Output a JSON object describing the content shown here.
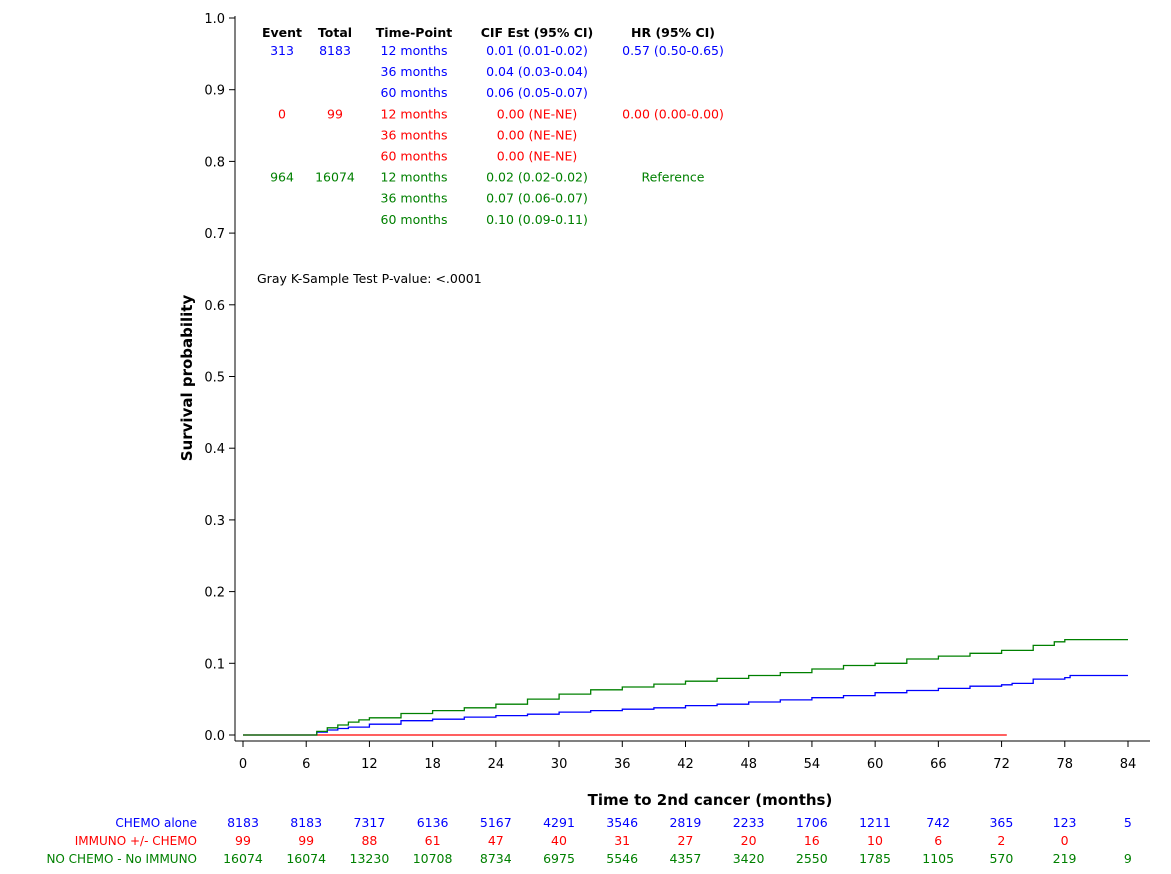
{
  "colors": {
    "CHEMO alone": "#0000ff",
    "IMMUNO +/- CHEMO": "#ff0000",
    "NO CHEMO - No IMMUNO": "#008000",
    "axis": "#000000",
    "text": "#000000"
  },
  "chart_data": {
    "type": "line",
    "title": "",
    "xlabel": "Time to 2nd cancer (months)",
    "ylabel": "Survival probability",
    "xlim": [
      0,
      84
    ],
    "ylim": [
      0,
      1.0
    ],
    "x_ticks": [
      0,
      6,
      12,
      18,
      24,
      30,
      36,
      42,
      48,
      54,
      60,
      66,
      72,
      78,
      84
    ],
    "y_ticks": [
      "0.0",
      "0.1",
      "0.2",
      "0.3",
      "0.4",
      "0.5",
      "0.6",
      "0.7",
      "0.8",
      "0.9",
      "1.0"
    ],
    "grid": false,
    "series": [
      {
        "name": "CHEMO alone",
        "points": [
          [
            0,
            0
          ],
          [
            6,
            0
          ],
          [
            7,
            0.004
          ],
          [
            8,
            0.007
          ],
          [
            9,
            0.009
          ],
          [
            10,
            0.011
          ],
          [
            12,
            0.015
          ],
          [
            15,
            0.02
          ],
          [
            18,
            0.022
          ],
          [
            21,
            0.025
          ],
          [
            24,
            0.027
          ],
          [
            27,
            0.029
          ],
          [
            30,
            0.032
          ],
          [
            33,
            0.034
          ],
          [
            36,
            0.036
          ],
          [
            39,
            0.038
          ],
          [
            42,
            0.041
          ],
          [
            45,
            0.043
          ],
          [
            48,
            0.046
          ],
          [
            51,
            0.049
          ],
          [
            54,
            0.052
          ],
          [
            57,
            0.055
          ],
          [
            60,
            0.059
          ],
          [
            63,
            0.062
          ],
          [
            66,
            0.065
          ],
          [
            69,
            0.068
          ],
          [
            72,
            0.07
          ],
          [
            73,
            0.072
          ],
          [
            75,
            0.078
          ],
          [
            78,
            0.08
          ],
          [
            78.5,
            0.083
          ],
          [
            84,
            0.083
          ]
        ]
      },
      {
        "name": "IMMUNO +/- CHEMO",
        "points": [
          [
            0,
            0
          ],
          [
            72.5,
            0
          ]
        ]
      },
      {
        "name": "NO CHEMO - No IMMUNO",
        "points": [
          [
            0,
            0
          ],
          [
            6,
            0
          ],
          [
            7,
            0.005
          ],
          [
            8,
            0.01
          ],
          [
            9,
            0.014
          ],
          [
            10,
            0.018
          ],
          [
            11,
            0.021
          ],
          [
            12,
            0.024
          ],
          [
            15,
            0.03
          ],
          [
            18,
            0.034
          ],
          [
            21,
            0.038
          ],
          [
            24,
            0.043
          ],
          [
            27,
            0.05
          ],
          [
            30,
            0.057
          ],
          [
            33,
            0.063
          ],
          [
            36,
            0.067
          ],
          [
            39,
            0.071
          ],
          [
            42,
            0.075
          ],
          [
            45,
            0.079
          ],
          [
            48,
            0.083
          ],
          [
            51,
            0.087
          ],
          [
            54,
            0.092
          ],
          [
            57,
            0.097
          ],
          [
            60,
            0.1
          ],
          [
            63,
            0.106
          ],
          [
            66,
            0.11
          ],
          [
            69,
            0.114
          ],
          [
            72,
            0.118
          ],
          [
            75,
            0.125
          ],
          [
            77,
            0.13
          ],
          [
            78,
            0.133
          ],
          [
            84,
            0.133
          ]
        ]
      }
    ],
    "inset_table": {
      "headers": [
        "Event",
        "Total",
        "Time-Point",
        "CIF Est (95% CI)",
        "HR (95% CI)"
      ],
      "groups": [
        {
          "name": "CHEMO alone",
          "event": "313",
          "total": "8183",
          "hr": "0.57 (0.50-0.65)",
          "rows": [
            {
              "time_point": "12 months",
              "cif": "0.01 (0.01-0.02)"
            },
            {
              "time_point": "36 months",
              "cif": "0.04 (0.03-0.04)"
            },
            {
              "time_point": "60 months",
              "cif": "0.06 (0.05-0.07)"
            }
          ]
        },
        {
          "name": "IMMUNO +/- CHEMO",
          "event": "0",
          "total": "99",
          "hr": "0.00 (0.00-0.00)",
          "rows": [
            {
              "time_point": "12 months",
              "cif": "0.00 (NE-NE)"
            },
            {
              "time_point": "36 months",
              "cif": "0.00 (NE-NE)"
            },
            {
              "time_point": "60 months",
              "cif": "0.00 (NE-NE)"
            }
          ]
        },
        {
          "name": "NO CHEMO - No IMMUNO",
          "event": "964",
          "total": "16074",
          "hr": "Reference",
          "rows": [
            {
              "time_point": "12 months",
              "cif": "0.02 (0.02-0.02)"
            },
            {
              "time_point": "36 months",
              "cif": "0.07 (0.06-0.07)"
            },
            {
              "time_point": "60 months",
              "cif": "0.10 (0.09-0.11)"
            }
          ]
        }
      ],
      "footnote": "Gray K-Sample Test P-value: <.0001"
    },
    "at_risk": {
      "times": [
        0,
        6,
        12,
        18,
        24,
        30,
        36,
        42,
        48,
        54,
        60,
        66,
        72,
        78,
        84
      ],
      "rows": [
        {
          "label": "CHEMO alone",
          "values": [
            "8183",
            "8183",
            "7317",
            "6136",
            "5167",
            "4291",
            "3546",
            "2819",
            "2233",
            "1706",
            "1211",
            "742",
            "365",
            "123",
            "5"
          ]
        },
        {
          "label": "IMMUNO +/- CHEMO",
          "values": [
            "99",
            "99",
            "88",
            "61",
            "47",
            "40",
            "31",
            "27",
            "20",
            "16",
            "10",
            "6",
            "2",
            "0",
            ""
          ]
        },
        {
          "label": "NO CHEMO - No IMMUNO",
          "values": [
            "16074",
            "16074",
            "13230",
            "10708",
            "8734",
            "6975",
            "5546",
            "4357",
            "3420",
            "2550",
            "1785",
            "1105",
            "570",
            "219",
            "9"
          ]
        }
      ]
    }
  }
}
